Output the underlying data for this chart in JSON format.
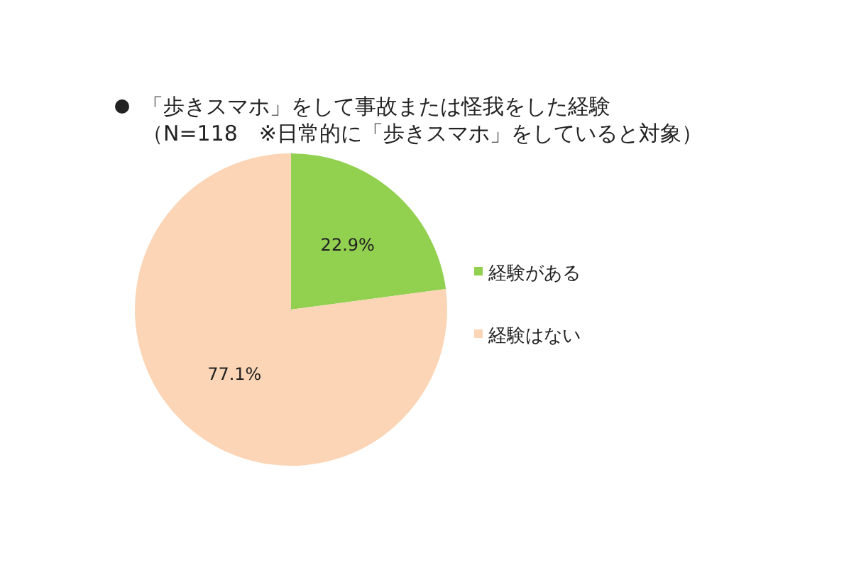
{
  "chart_data": {
    "type": "pie",
    "title": "「歩きスマホ」をして事故または怪我をした経験",
    "subtitle": "（N=118　※日常的に「歩きスマホ」をしていると対象）",
    "categories": [
      "経験がある",
      "経験はない"
    ],
    "values": [
      22.9,
      77.1
    ],
    "value_labels": [
      "22.9%",
      "77.1%"
    ],
    "colors": [
      "#92d050",
      "#fbd5b5"
    ],
    "legend": "right"
  }
}
